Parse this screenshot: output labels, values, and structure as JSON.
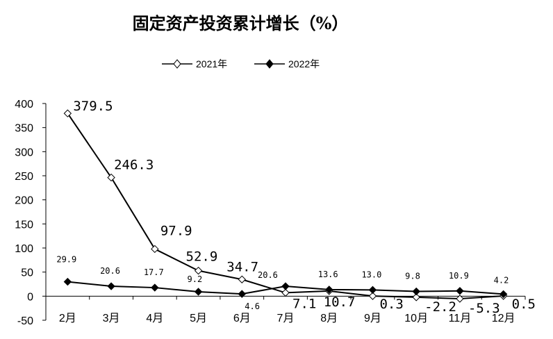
{
  "chart_data": {
    "type": "line",
    "title": "固定资产投资累计增长（%）",
    "categories": [
      "2月",
      "3月",
      "4月",
      "5月",
      "6月",
      "7月",
      "8月",
      "9月",
      "10月",
      "11月",
      "12月"
    ],
    "series": [
      {
        "name": "2021年",
        "marker": "open-diamond",
        "values": [
          379.5,
          246.3,
          97.9,
          52.9,
          34.7,
          7.1,
          10.7,
          0.3,
          -2.2,
          -5.3,
          0.5
        ],
        "labels": [
          "379.5",
          "246.3",
          "97.9",
          "52.9",
          "34.7",
          "7.1",
          "10.7",
          "0.3",
          "-2.2",
          "-5.3",
          "0.5"
        ]
      },
      {
        "name": "2022年",
        "marker": "filled-diamond",
        "values": [
          29.9,
          20.6,
          17.7,
          9.2,
          4.6,
          20.6,
          13.6,
          13.0,
          9.8,
          10.9,
          4.2
        ],
        "labels": [
          "29.9",
          "20.6",
          "17.7",
          "9.2",
          "4.6",
          "20.6",
          "13.6",
          "13.0",
          "9.8",
          "10.9",
          "4.2"
        ]
      }
    ],
    "ylim": [
      -50,
      400
    ],
    "yticks": [
      "400",
      "350",
      "300",
      "250",
      "200",
      "150",
      "100",
      "50",
      "0",
      "-50"
    ],
    "grid": false,
    "legend_position": "top-center",
    "line_color": "#000000"
  }
}
